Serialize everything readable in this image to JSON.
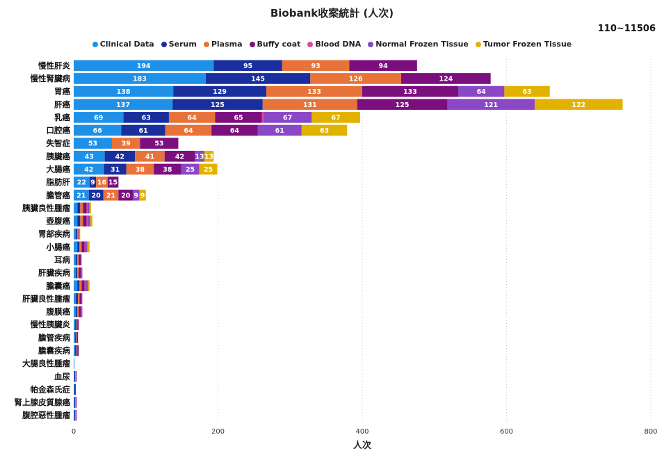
{
  "chart_data": {
    "type": "bar",
    "orientation": "horizontal",
    "stacked": true,
    "title": "Biobank收案統計 (人次)",
    "subtitle": "110~11506",
    "xlabel": "人次",
    "ylabel": "",
    "xlim": [
      0,
      800
    ],
    "xticks": [
      "0",
      "200",
      "400",
      "600",
      "800"
    ],
    "grid": "vertical dotted",
    "legend_position": "top",
    "categories": [
      "慢性肝炎",
      "慢性腎臟病",
      "胃癌",
      "肝癌",
      "乳癌",
      "口腔癌",
      "失智症",
      "胰臟癌",
      "大腸癌",
      "脂肪肝",
      "膽管癌",
      "胰臟良性腫瘤",
      "壺腹癌",
      "胃部疾病",
      "小腸癌",
      "耳病",
      "肝臟疾病",
      "膽囊癌",
      "肝臟良性腫瘤",
      "腹膜癌",
      "慢性胰臟炎",
      "膽管疾病",
      "膽囊疾病",
      "大腸良性腫瘤",
      "血尿",
      "帕金森氏症",
      "腎上腺皮質腺癌",
      "腹腔惡性腫瘤"
    ],
    "series": [
      {
        "name": "Clinical Data",
        "color": "#1e90e8",
        "values": [
          194,
          183,
          138,
          137,
          69,
          66,
          53,
          43,
          42,
          22,
          21,
          5,
          5,
          3,
          5,
          3,
          3,
          5,
          3,
          3,
          2,
          2,
          2,
          1,
          1,
          1,
          1,
          1
        ]
      },
      {
        "name": "Serum",
        "color": "#1a2f9e",
        "values": [
          95,
          145,
          129,
          125,
          63,
          61,
          0,
          42,
          31,
          9,
          20,
          4,
          4,
          2,
          3,
          2,
          2,
          3,
          3,
          2,
          2,
          1,
          2,
          0,
          1,
          1,
          1,
          1
        ]
      },
      {
        "name": "Plasma",
        "color": "#e8733a",
        "values": [
          93,
          126,
          133,
          131,
          64,
          64,
          39,
          41,
          38,
          16,
          21,
          4,
          4,
          2,
          3,
          2,
          2,
          3,
          2,
          2,
          1,
          1,
          1,
          0,
          1,
          0,
          1,
          1
        ]
      },
      {
        "name": "Buffy coat",
        "color": "#7b0f7e",
        "values": [
          94,
          124,
          133,
          125,
          65,
          64,
          53,
          42,
          38,
          15,
          20,
          5,
          5,
          1,
          4,
          3,
          3,
          4,
          3,
          3,
          2,
          2,
          2,
          0,
          1,
          1,
          1,
          1
        ]
      },
      {
        "name": "Blood DNA",
        "color": "#e0459c",
        "values": [
          0,
          0,
          0,
          0,
          2,
          0,
          0,
          0,
          0,
          0,
          0,
          1,
          1,
          0,
          1,
          1,
          1,
          1,
          1,
          1,
          0,
          0,
          0,
          0,
          0,
          0,
          0,
          0
        ]
      },
      {
        "name": "Normal Frozen Tissue",
        "color": "#8a47c6",
        "values": [
          0,
          0,
          64,
          121,
          67,
          61,
          0,
          13,
          25,
          0,
          9,
          3,
          4,
          0,
          3,
          0,
          1,
          4,
          0,
          1,
          0,
          0,
          0,
          0,
          0,
          0,
          0,
          0
        ]
      },
      {
        "name": "Tumor Frozen Tissue",
        "color": "#e2b200",
        "values": [
          0,
          0,
          63,
          122,
          67,
          63,
          0,
          13,
          25,
          0,
          9,
          2,
          3,
          1,
          3,
          0,
          0,
          2,
          0,
          0,
          0,
          0,
          0,
          0,
          0,
          0,
          0,
          0
        ]
      }
    ]
  }
}
